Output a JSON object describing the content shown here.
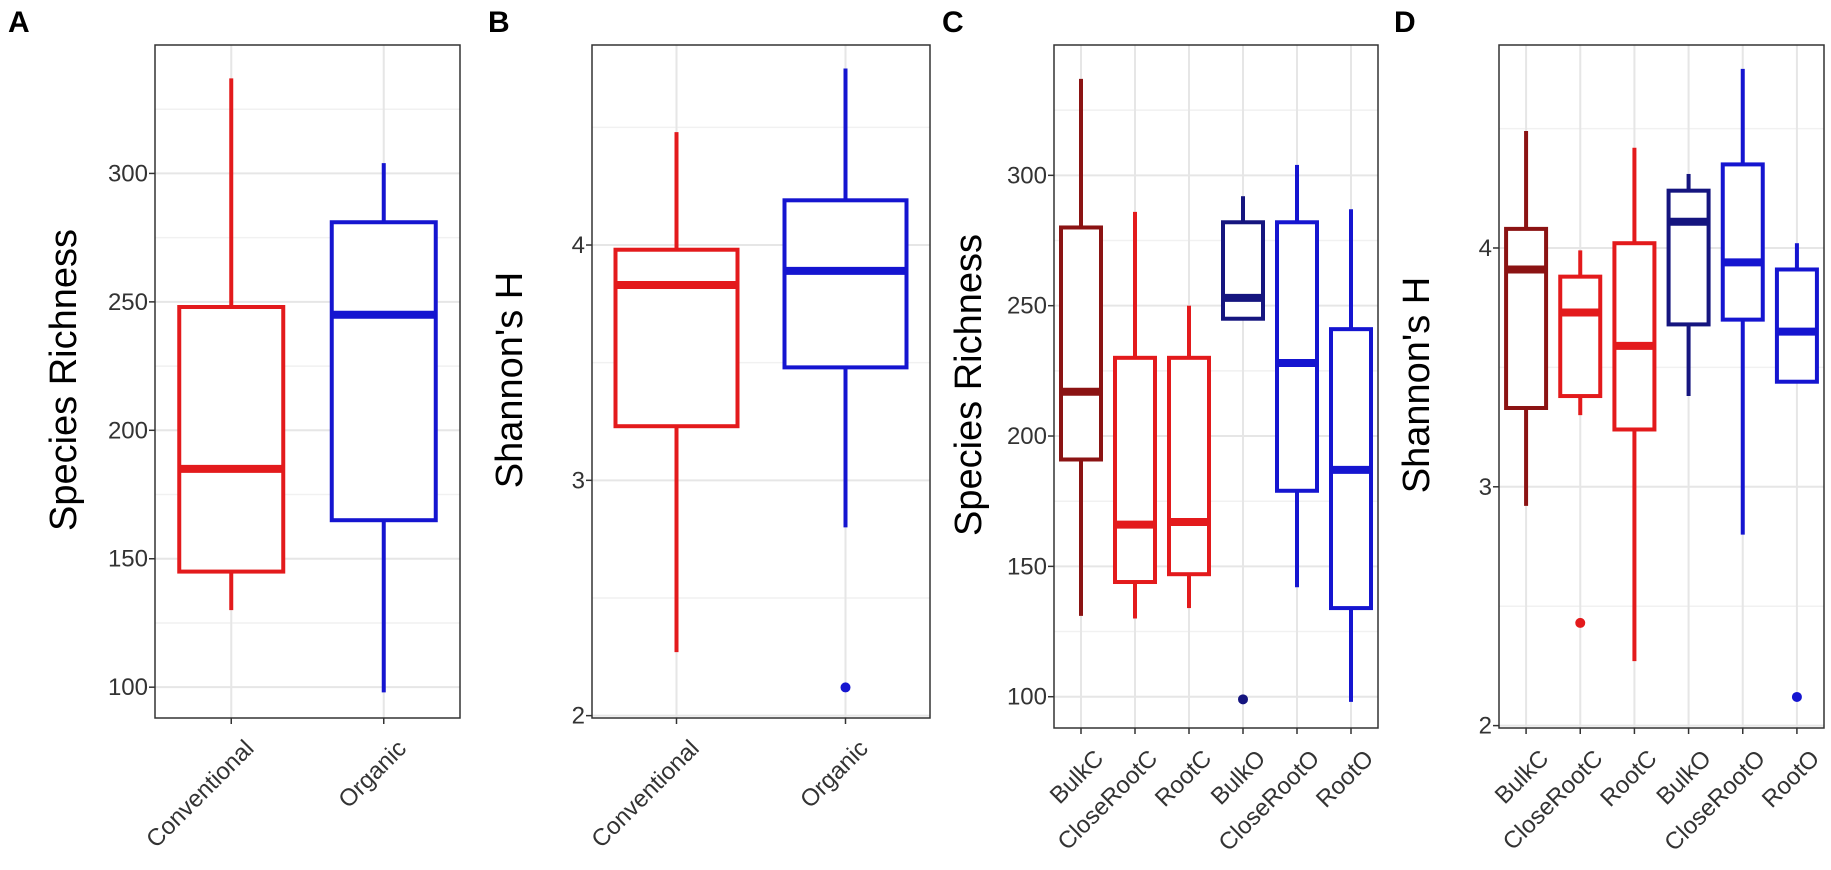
{
  "chart_data": [
    {
      "panel": "A",
      "type": "box",
      "ylabel": "Species Richness",
      "ylim": [
        88,
        350
      ],
      "yticks": [
        100,
        150,
        200,
        250,
        300
      ],
      "categories": [
        "Conventional",
        "Organic"
      ],
      "boxes": [
        {
          "name": "Conventional",
          "color": "#e31a1c",
          "min": 130,
          "q1": 145,
          "median": 185,
          "q3": 248,
          "max": 337,
          "outliers": []
        },
        {
          "name": "Organic",
          "color": "#1515d0",
          "min": 98,
          "q1": 165,
          "median": 245,
          "q3": 281,
          "max": 304,
          "outliers": []
        }
      ]
    },
    {
      "panel": "B",
      "type": "box",
      "ylabel": "Shannon's H",
      "ylim": [
        1.99,
        4.85
      ],
      "yticks": [
        2,
        3,
        4
      ],
      "categories": [
        "Conventional",
        "Organic"
      ],
      "boxes": [
        {
          "name": "Conventional",
          "color": "#e31a1c",
          "min": 2.27,
          "q1": 3.23,
          "median": 3.83,
          "q3": 3.98,
          "max": 4.48,
          "outliers": []
        },
        {
          "name": "Organic",
          "color": "#1515d0",
          "min": 2.8,
          "q1": 3.48,
          "median": 3.89,
          "q3": 4.19,
          "max": 4.75,
          "outliers": [
            2.12
          ]
        }
      ]
    },
    {
      "panel": "C",
      "type": "box",
      "ylabel": "Species Richness",
      "ylim": [
        88,
        350
      ],
      "yticks": [
        100,
        150,
        200,
        250,
        300
      ],
      "categories": [
        "BulkC",
        "CloseRootC",
        "RootC",
        "BulkO",
        "CloseRootO",
        "RootO"
      ],
      "boxes": [
        {
          "name": "BulkC",
          "color": "#8b1313",
          "min": 131,
          "q1": 191,
          "median": 217,
          "q3": 280,
          "max": 337,
          "outliers": []
        },
        {
          "name": "CloseRootC",
          "color": "#e31a1c",
          "min": 130,
          "q1": 144,
          "median": 166,
          "q3": 230,
          "max": 286,
          "outliers": []
        },
        {
          "name": "RootC",
          "color": "#e31a1c",
          "min": 134,
          "q1": 147,
          "median": 167,
          "q3": 230,
          "max": 250,
          "outliers": []
        },
        {
          "name": "BulkO",
          "color": "#15157f",
          "min": 245,
          "q1": 245,
          "median": 253,
          "q3": 282,
          "max": 292,
          "outliers": [
            99
          ]
        },
        {
          "name": "CloseRootO",
          "color": "#1515d0",
          "min": 142,
          "q1": 179,
          "median": 228,
          "q3": 282,
          "max": 304,
          "outliers": []
        },
        {
          "name": "RootO",
          "color": "#1515d0",
          "min": 98,
          "q1": 134,
          "median": 187,
          "q3": 241,
          "max": 287,
          "outliers": []
        }
      ]
    },
    {
      "panel": "D",
      "type": "box",
      "ylabel": "Shannon's H",
      "ylim": [
        1.99,
        4.85
      ],
      "yticks": [
        2,
        3,
        4
      ],
      "categories": [
        "BulkC",
        "CloseRootC",
        "RootC",
        "BulkO",
        "CloseRootO",
        "RootO"
      ],
      "boxes": [
        {
          "name": "BulkC",
          "color": "#8b1313",
          "min": 2.92,
          "q1": 3.33,
          "median": 3.91,
          "q3": 4.08,
          "max": 4.49,
          "outliers": []
        },
        {
          "name": "CloseRootC",
          "color": "#e31a1c",
          "min": 3.3,
          "q1": 3.38,
          "median": 3.73,
          "q3": 3.88,
          "max": 3.99,
          "outliers": [
            2.43
          ]
        },
        {
          "name": "RootC",
          "color": "#e31a1c",
          "min": 2.27,
          "q1": 3.24,
          "median": 3.59,
          "q3": 4.02,
          "max": 4.42,
          "outliers": []
        },
        {
          "name": "BulkO",
          "color": "#15157f",
          "min": 3.38,
          "q1": 3.68,
          "median": 4.11,
          "q3": 4.24,
          "max": 4.31,
          "outliers": []
        },
        {
          "name": "CloseRootO",
          "color": "#1515d0",
          "min": 2.8,
          "q1": 3.7,
          "median": 3.94,
          "q3": 4.35,
          "max": 4.75,
          "outliers": []
        },
        {
          "name": "RootO",
          "color": "#1515d0",
          "min": 3.44,
          "q1": 3.44,
          "median": 3.65,
          "q3": 3.91,
          "max": 4.02,
          "outliers": [
            2.12
          ]
        }
      ]
    }
  ]
}
